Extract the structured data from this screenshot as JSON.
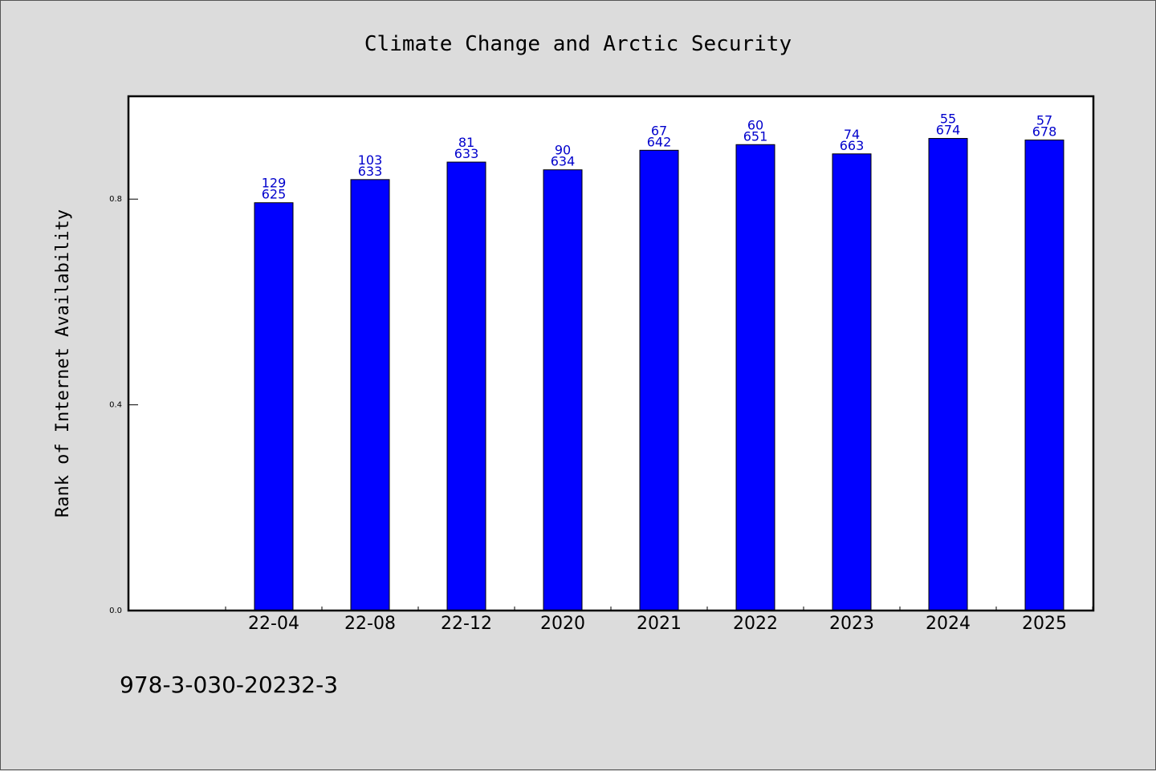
{
  "chart_data": {
    "type": "bar",
    "title": "Climate Change and Arctic Security",
    "ylabel": "Rank of Internet Availability",
    "xlabel": "",
    "categories": [
      "22-04",
      "22-08",
      "22-12",
      "2020",
      "2021",
      "2022",
      "2023",
      "2024",
      "2025"
    ],
    "values": [
      0.793,
      0.838,
      0.872,
      0.857,
      0.895,
      0.906,
      0.888,
      0.918,
      0.915
    ],
    "label_top": [
      "129",
      "103",
      "81",
      "90",
      "67",
      "60",
      "74",
      "55",
      "57"
    ],
    "label_bottom": [
      "625",
      "633",
      "633",
      "634",
      "642",
      "651",
      "663",
      "674",
      "678"
    ],
    "ylim": [
      0,
      1.0
    ],
    "yticks": [
      0.0,
      0.4,
      0.8
    ],
    "ytick_labels": [
      "0.0",
      "0.4",
      "0.8"
    ],
    "grid": false,
    "bar_color": "#0000ff",
    "label_color": "#0000cc"
  },
  "footer": {
    "isbn": "978-3-030-20232-3"
  }
}
